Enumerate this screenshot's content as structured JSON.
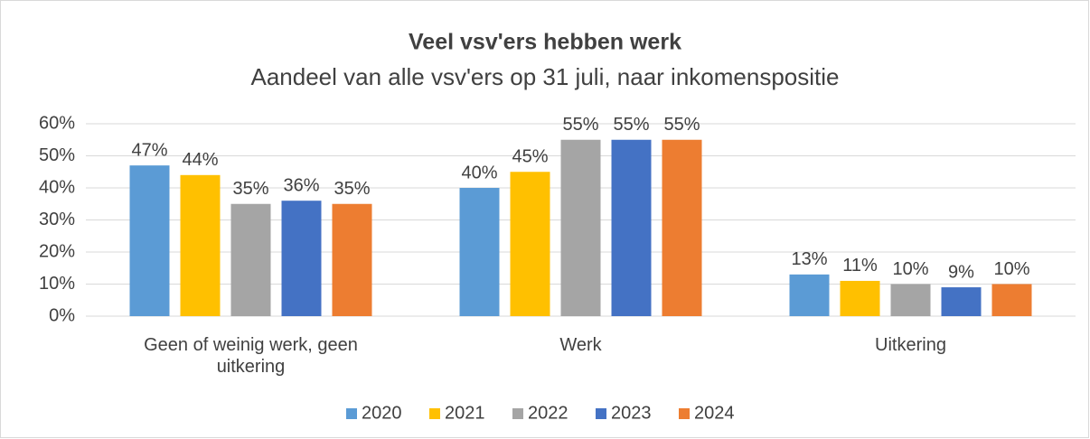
{
  "chart_data": {
    "type": "bar",
    "title": "Veel vsv'ers hebben werk",
    "subtitle": "Aandeel van alle vsv'ers op 31 juli, naar inkomenspositie",
    "categories": [
      "Geen of weinig werk, geen uitkering",
      "Werk",
      "Uitkering"
    ],
    "series": [
      {
        "name": "2020",
        "color": "#5b9bd5",
        "values": [
          47,
          40,
          13
        ],
        "value_labels": [
          "47%",
          "40%",
          "13%"
        ]
      },
      {
        "name": "2021",
        "color": "#ffc000",
        "values": [
          44,
          45,
          11
        ],
        "value_labels": [
          "44%",
          "45%",
          "11%"
        ]
      },
      {
        "name": "2022",
        "color": "#a5a5a5",
        "values": [
          35,
          55,
          10
        ],
        "value_labels": [
          "35%",
          "55%",
          "10%"
        ]
      },
      {
        "name": "2023",
        "color": "#4472c4",
        "values": [
          36,
          55,
          9
        ],
        "value_labels": [
          "36%",
          "55%",
          "9%"
        ]
      },
      {
        "name": "2024",
        "color": "#ed7d31",
        "values": [
          35,
          55,
          10
        ],
        "value_labels": [
          "35%",
          "55%",
          "10%"
        ]
      }
    ],
    "ylim": [
      0,
      60
    ],
    "yticks": [
      {
        "value": 0,
        "label": "0%"
      },
      {
        "value": 10,
        "label": "10%"
      },
      {
        "value": 20,
        "label": "20%"
      },
      {
        "value": 30,
        "label": "30%"
      },
      {
        "value": 40,
        "label": "40%"
      },
      {
        "value": 50,
        "label": "50%"
      },
      {
        "value": 60,
        "label": "60%"
      }
    ],
    "grid": true,
    "legend": "bottom"
  }
}
